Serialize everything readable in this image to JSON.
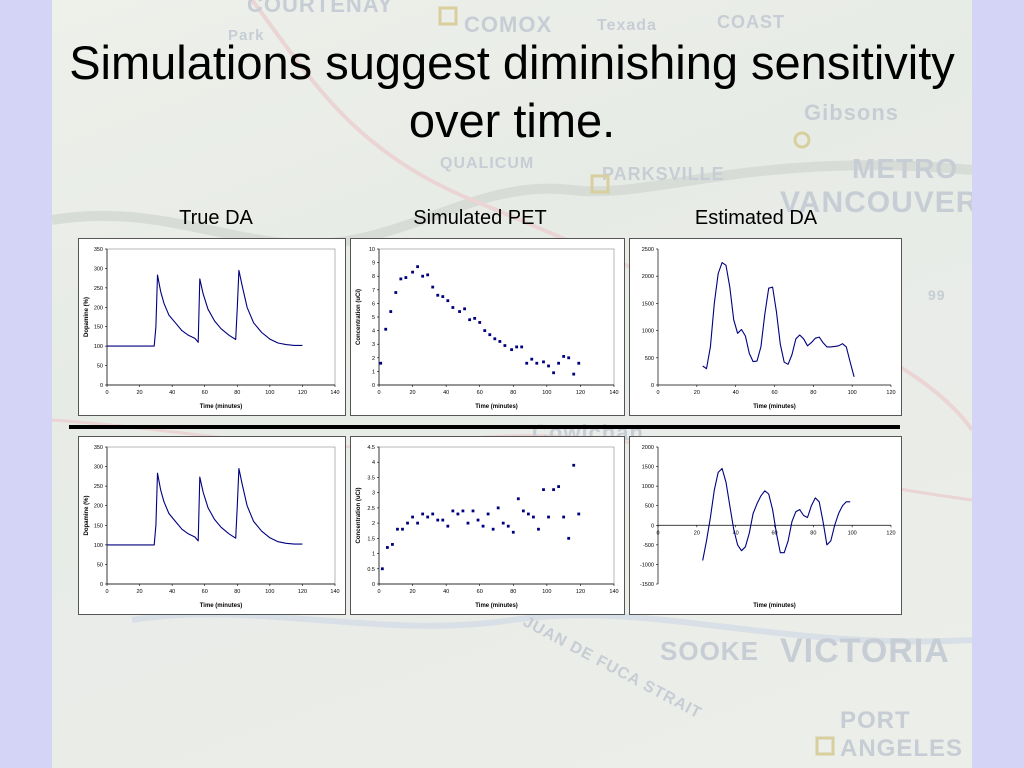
{
  "slide": {
    "title": "Simulations suggest diminishing sensitivity over time.",
    "column_headers": [
      "True DA",
      "Simulated PET",
      "Estimated DA"
    ],
    "map_labels": [
      "COURTENAY",
      "COMOX",
      "Texada",
      "COAST",
      "Park",
      "Gibsons",
      "METRO",
      "VANCOUVER",
      "PARKSVILLE",
      "QUALICUM",
      "Cowichan",
      "SOOKE",
      "VICTORIA",
      "PORT",
      "ANGELES",
      "JUAN DE FUCA STRAIT",
      "99"
    ]
  },
  "colors": {
    "series": "#00007f",
    "page_bg": "#d4d4f7"
  },
  "chart_data": [
    {
      "type": "line",
      "panel": "True DA (top)",
      "xlabel": "Time (minutes)",
      "ylabel": "Dopamine (%)",
      "xlim": [
        0,
        140
      ],
      "ylim": [
        0,
        350
      ],
      "xticks": [
        0,
        20,
        40,
        60,
        80,
        100,
        120,
        140
      ],
      "yticks": [
        0,
        50,
        100,
        150,
        200,
        250,
        300,
        350
      ],
      "series": [
        {
          "x": [
            0,
            29,
            30,
            31,
            33,
            35,
            38,
            42,
            46,
            50,
            54,
            55,
            56,
            57,
            59,
            62,
            66,
            70,
            75,
            79,
            80,
            81,
            83,
            86,
            90,
            95,
            100,
            105,
            110,
            115,
            120
          ],
          "y": [
            100,
            100,
            150,
            283,
            240,
            210,
            180,
            160,
            140,
            128,
            120,
            115,
            110,
            273,
            235,
            195,
            165,
            145,
            128,
            117,
            200,
            295,
            255,
            200,
            160,
            135,
            118,
            108,
            104,
            102,
            102
          ]
        }
      ]
    },
    {
      "type": "scatter",
      "panel": "Simulated PET (top)",
      "xlabel": "Time (minutes)",
      "ylabel": "Concentration (uCi)",
      "xlim": [
        0,
        140
      ],
      "ylim": [
        0,
        10
      ],
      "xticks": [
        0,
        20,
        40,
        60,
        80,
        100,
        120,
        140
      ],
      "yticks": [
        0,
        1,
        2,
        3,
        4,
        5,
        6,
        7,
        8,
        9,
        10
      ],
      "series": [
        {
          "x": [
            1,
            4,
            7,
            10,
            13,
            16,
            20,
            23,
            26,
            29,
            32,
            35,
            38,
            41,
            44,
            48,
            51,
            54,
            57,
            60,
            63,
            66,
            69,
            72,
            75,
            79,
            82,
            85,
            88,
            91,
            94,
            98,
            101,
            104,
            107,
            110,
            113,
            116,
            119
          ],
          "y": [
            1.6,
            4.1,
            5.4,
            6.8,
            7.8,
            7.9,
            8.3,
            8.7,
            8.0,
            8.1,
            7.2,
            6.6,
            6.5,
            6.2,
            5.7,
            5.4,
            5.6,
            4.8,
            4.9,
            4.6,
            4.0,
            3.7,
            3.4,
            3.2,
            2.9,
            2.6,
            2.8,
            2.8,
            1.6,
            1.9,
            1.6,
            1.7,
            1.4,
            0.9,
            1.6,
            2.1,
            2.0,
            0.8,
            1.6
          ]
        }
      ]
    },
    {
      "type": "line",
      "panel": "Estimated DA (top)",
      "xlabel": "Time (minutes)",
      "ylabel": "",
      "xlim": [
        0,
        120
      ],
      "ylim": [
        0,
        2500
      ],
      "xticks": [
        0,
        20,
        40,
        60,
        80,
        100,
        120
      ],
      "yticks": [
        0,
        500,
        1000,
        1500,
        2000,
        2500
      ],
      "series": [
        {
          "x": [
            23,
            25,
            27,
            29,
            31,
            33,
            35,
            37,
            39,
            41,
            43,
            45,
            47,
            49,
            51,
            53,
            55,
            57,
            59,
            61,
            63,
            65,
            67,
            69,
            71,
            73,
            75,
            77,
            79,
            81,
            83,
            85,
            87,
            89,
            91,
            93,
            95,
            97,
            99,
            101
          ],
          "y": [
            350,
            300,
            700,
            1500,
            2050,
            2250,
            2200,
            1800,
            1200,
            950,
            1020,
            900,
            580,
            430,
            440,
            700,
            1300,
            1780,
            1800,
            1350,
            750,
            420,
            380,
            560,
            850,
            920,
            850,
            720,
            780,
            860,
            880,
            780,
            700,
            700,
            710,
            720,
            760,
            700,
            420,
            150
          ]
        }
      ]
    },
    {
      "type": "line",
      "panel": "True DA (bottom)",
      "xlabel": "Time (minutes)",
      "ylabel": "Dopamine (%)",
      "xlim": [
        0,
        140
      ],
      "ylim": [
        0,
        350
      ],
      "xticks": [
        0,
        20,
        40,
        60,
        80,
        100,
        120,
        140
      ],
      "yticks": [
        0,
        50,
        100,
        150,
        200,
        250,
        300,
        350
      ],
      "series": [
        {
          "x": [
            0,
            29,
            30,
            31,
            33,
            35,
            38,
            42,
            46,
            50,
            54,
            55,
            56,
            57,
            59,
            62,
            66,
            70,
            75,
            79,
            80,
            81,
            83,
            86,
            90,
            95,
            100,
            105,
            110,
            115,
            120
          ],
          "y": [
            100,
            100,
            150,
            283,
            240,
            210,
            180,
            160,
            140,
            128,
            120,
            115,
            110,
            273,
            235,
            195,
            165,
            145,
            128,
            117,
            200,
            295,
            255,
            200,
            160,
            135,
            118,
            108,
            104,
            102,
            102
          ]
        }
      ]
    },
    {
      "type": "scatter",
      "panel": "Simulated PET (bottom)",
      "xlabel": "Time (minutes)",
      "ylabel": "Concentration (uCi)",
      "xlim": [
        0,
        140
      ],
      "ylim": [
        0,
        4.5
      ],
      "xticks": [
        0,
        20,
        40,
        60,
        80,
        100,
        120,
        140
      ],
      "yticks": [
        0,
        0.5,
        1,
        1.5,
        2,
        2.5,
        3,
        3.5,
        4,
        4.5
      ],
      "series": [
        {
          "x": [
            2,
            5,
            8,
            11,
            14,
            17,
            20,
            23,
            26,
            29,
            32,
            35,
            38,
            41,
            44,
            47,
            50,
            53,
            56,
            59,
            62,
            65,
            68,
            71,
            74,
            77,
            80,
            83,
            86,
            89,
            92,
            95,
            98,
            101,
            104,
            107,
            110,
            113,
            116,
            119
          ],
          "y": [
            0.5,
            1.2,
            1.3,
            1.8,
            1.8,
            2.0,
            2.2,
            2.0,
            2.3,
            2.2,
            2.3,
            2.1,
            2.1,
            1.9,
            2.4,
            2.3,
            2.4,
            2.0,
            2.4,
            2.1,
            1.9,
            2.3,
            1.8,
            2.5,
            2.0,
            1.9,
            1.7,
            2.8,
            2.4,
            2.3,
            2.2,
            1.8,
            3.1,
            2.2,
            3.1,
            3.2,
            2.2,
            1.5,
            3.9,
            2.3
          ]
        }
      ]
    },
    {
      "type": "line",
      "panel": "Estimated DA (bottom)",
      "xlabel": "Time (minutes)",
      "ylabel": "",
      "xlim": [
        0,
        120
      ],
      "ylim": [
        -1500,
        2000
      ],
      "xticks": [
        0,
        20,
        40,
        60,
        80,
        100,
        120
      ],
      "yticks": [
        -1500,
        -1000,
        -500,
        0,
        500,
        1000,
        1500,
        2000
      ],
      "series": [
        {
          "x": [
            23,
            25,
            27,
            29,
            31,
            33,
            35,
            37,
            39,
            41,
            43,
            45,
            47,
            49,
            51,
            53,
            55,
            57,
            59,
            61,
            63,
            65,
            67,
            69,
            71,
            73,
            75,
            77,
            79,
            81,
            83,
            85,
            87,
            89,
            91,
            93,
            95,
            97,
            99
          ],
          "y": [
            -900,
            -400,
            200,
            900,
            1350,
            1450,
            1100,
            500,
            -100,
            -500,
            -650,
            -550,
            -200,
            300,
            550,
            750,
            880,
            800,
            400,
            -200,
            -700,
            -700,
            -400,
            100,
            350,
            400,
            250,
            200,
            500,
            700,
            600,
            100,
            -500,
            -400,
            0,
            300,
            500,
            600,
            600
          ]
        }
      ]
    }
  ]
}
